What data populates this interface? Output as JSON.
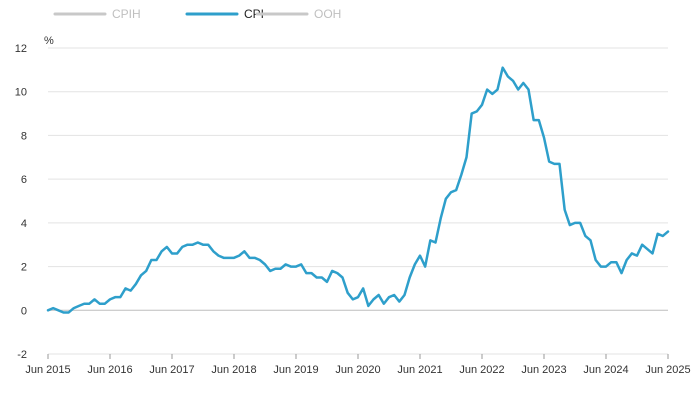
{
  "chart_data": {
    "type": "line",
    "ylabel": "%",
    "ylim": [
      -2,
      12
    ],
    "yticks": [
      -2,
      0,
      2,
      4,
      6,
      8,
      10,
      12
    ],
    "xlim": [
      "Jun 2015",
      "Jun 2025"
    ],
    "xticks": [
      "Jun 2015",
      "Jun 2016",
      "Jun 2017",
      "Jun 2018",
      "Jun 2019",
      "Jun 2020",
      "Jun 2021",
      "Jun 2022",
      "Jun 2023",
      "Jun 2024",
      "Jun 2025"
    ],
    "grid": "horizontal",
    "legend_position": "top-left",
    "colors": {
      "CPI": "#2e9fcb",
      "inactive": "#c8c8c8",
      "inactive_text": "#bfbfbf",
      "grid": "#e3e3e3",
      "zero_line": "#bdbdbd"
    },
    "legend": [
      {
        "name": "CPIH",
        "active": false
      },
      {
        "name": "CPI",
        "active": true
      },
      {
        "name": "OOH",
        "active": false
      }
    ],
    "x_start": "Jun 2015",
    "series": [
      {
        "name": "CPI",
        "values": [
          0.0,
          0.1,
          0.0,
          -0.1,
          -0.1,
          0.1,
          0.2,
          0.3,
          0.3,
          0.5,
          0.3,
          0.3,
          0.5,
          0.6,
          0.6,
          1.0,
          0.9,
          1.2,
          1.6,
          1.8,
          2.3,
          2.3,
          2.7,
          2.9,
          2.6,
          2.6,
          2.9,
          3.0,
          3.0,
          3.1,
          3.0,
          3.0,
          2.7,
          2.5,
          2.4,
          2.4,
          2.4,
          2.5,
          2.7,
          2.4,
          2.4,
          2.3,
          2.1,
          1.8,
          1.9,
          1.9,
          2.1,
          2.0,
          2.0,
          2.1,
          1.7,
          1.7,
          1.5,
          1.5,
          1.3,
          1.8,
          1.7,
          1.5,
          0.8,
          0.5,
          0.6,
          1.0,
          0.2,
          0.5,
          0.7,
          0.3,
          0.6,
          0.7,
          0.4,
          0.7,
          1.5,
          2.1,
          2.5,
          2.0,
          3.2,
          3.1,
          4.2,
          5.1,
          5.4,
          5.5,
          6.2,
          7.0,
          9.0,
          9.1,
          9.4,
          10.1,
          9.9,
          10.1,
          11.1,
          10.7,
          10.5,
          10.1,
          10.4,
          10.1,
          8.7,
          8.7,
          7.9,
          6.8,
          6.7,
          6.7,
          4.6,
          3.9,
          4.0,
          4.0,
          3.4,
          3.2,
          2.3,
          2.0,
          2.0,
          2.2,
          2.2,
          1.7,
          2.3,
          2.6,
          2.5,
          3.0,
          2.8,
          2.6,
          3.5,
          3.4,
          3.6
        ]
      }
    ]
  }
}
